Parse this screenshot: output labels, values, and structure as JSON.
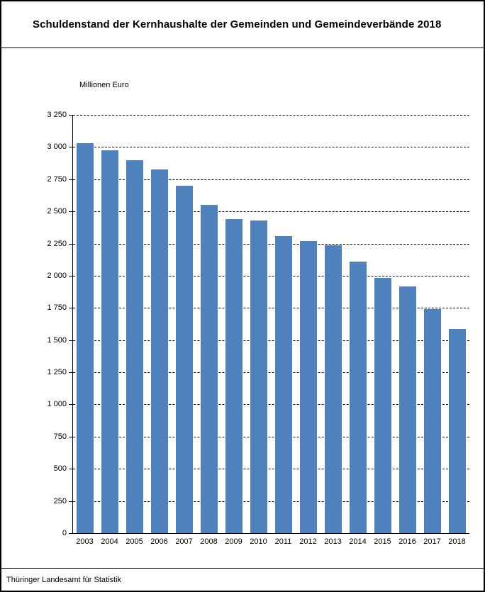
{
  "page": {
    "title": "Schuldenstand der Kernhaushalte der Gemeinden und Gemeindeverbände 2018",
    "unit_label": "Millionen Euro",
    "footer": "Thüringer Landesamt für Statistik"
  },
  "chart_data": {
    "type": "bar",
    "title": "Schuldenstand der Kernhaushalte der Gemeinden und Gemeindeverbände 2018",
    "xlabel": "",
    "ylabel": "Millionen Euro",
    "ylim": [
      0,
      3250
    ],
    "ytick_step": 250,
    "ytick_labels": [
      "0",
      "250",
      "500",
      "750",
      "1 000",
      "1 250",
      "1 500",
      "1 750",
      "2 000",
      "2 250",
      "2 500",
      "2 750",
      "3 000",
      "3 250"
    ],
    "grid": "horizontal-dashed",
    "legend": "none",
    "bar_color": "#4f81bd",
    "categories": [
      "2003",
      "2004",
      "2005",
      "2006",
      "2007",
      "2008",
      "2009",
      "2010",
      "2011",
      "2012",
      "2013",
      "2014",
      "2015",
      "2016",
      "2017",
      "2018"
    ],
    "values": [
      3030,
      2975,
      2900,
      2825,
      2700,
      2550,
      2440,
      2430,
      2310,
      2270,
      2235,
      2110,
      1985,
      1915,
      1740,
      1585
    ]
  }
}
